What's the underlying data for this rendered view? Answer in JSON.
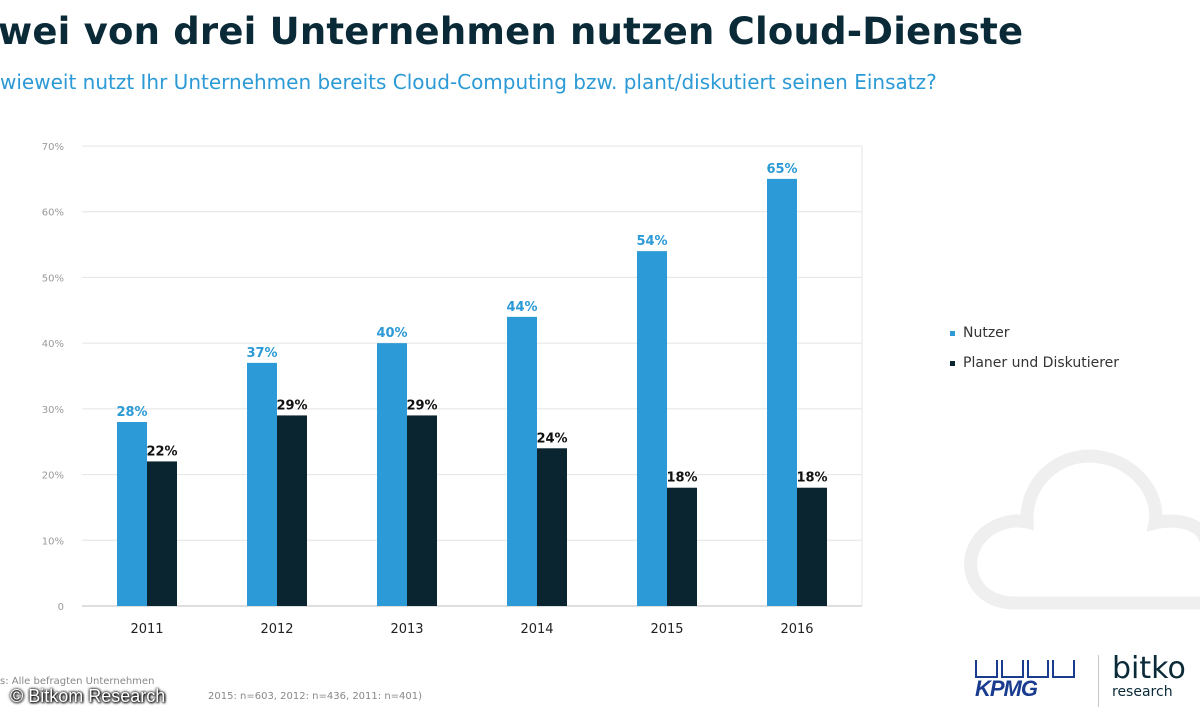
{
  "header": {
    "title": "wei von drei Unternehmen nutzen Cloud-Dienste",
    "subtitle": "wieweit nutzt Ihr Unternehmen bereits Cloud-Computing bzw. plant/diskutiert seinen Einsatz?"
  },
  "chart_data": {
    "type": "bar",
    "title": "wei von drei Unternehmen nutzen Cloud-Dienste",
    "subtitle": "wieweit nutzt Ihr Unternehmen bereits Cloud-Computing bzw. plant/diskutiert seinen Einsatz?",
    "categories": [
      "2011",
      "2012",
      "2013",
      "2014",
      "2015",
      "2016"
    ],
    "series": [
      {
        "name": "Nutzer",
        "color": "#2b9ad6",
        "label_color": "#2b9ad6",
        "values": [
          28,
          37,
          40,
          44,
          54,
          65
        ],
        "labels": [
          "28%",
          "37%",
          "40%",
          "44%",
          "54%",
          "65%"
        ]
      },
      {
        "name": "Planer und Diskutierer",
        "color": "#0b2530",
        "label_color": "#111111",
        "values": [
          22,
          29,
          29,
          24,
          18,
          18
        ],
        "labels": [
          "22%",
          "29%",
          "29%",
          "24%",
          "18%",
          "18%"
        ]
      }
    ],
    "ylim": [
      0,
      70
    ],
    "yticks": [
      0,
      10,
      20,
      30,
      40,
      50,
      60,
      70
    ],
    "ytick_labels": [
      "0",
      "10%",
      "20%",
      "30%",
      "40%",
      "50%",
      "60%",
      "70%"
    ],
    "xlabel": "",
    "ylabel": "",
    "grid": true,
    "legend_position": "right"
  },
  "legend": {
    "items": [
      {
        "label": "Nutzer",
        "color": "#2b9ad6"
      },
      {
        "label": "Planer und Diskutierer",
        "color": "#0b2530"
      }
    ]
  },
  "footer": {
    "source_line1": "s: Alle befragten Unternehmen",
    "source_line2": "2015: n=603, 2012: n=436, 2011: n=401)",
    "watermark": "© Bitkom Research"
  },
  "logos": {
    "kpmg": "KPMG",
    "bitkom": "bitko",
    "bitkom_sub": "research"
  }
}
